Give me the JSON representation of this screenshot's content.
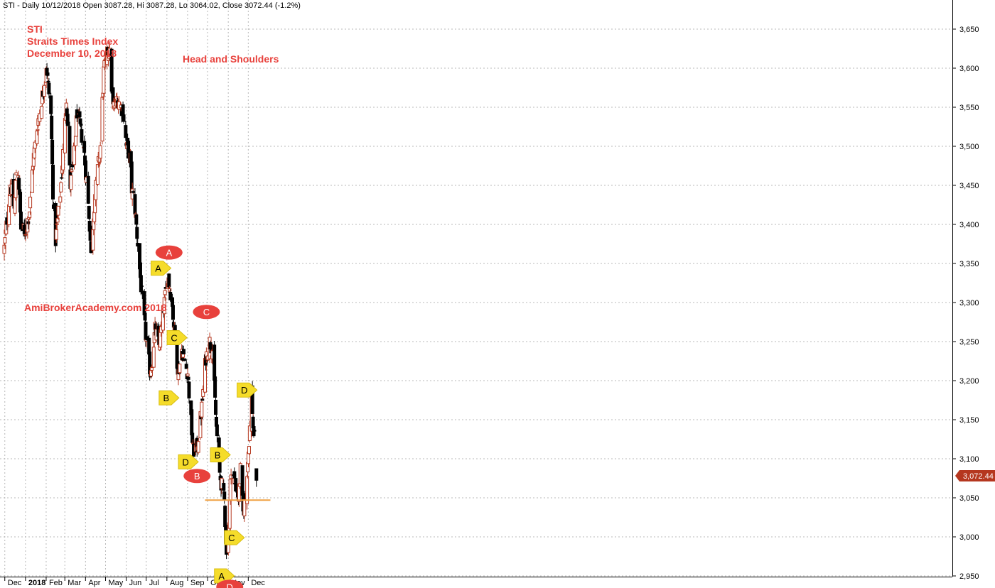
{
  "header": "STI - Daily 10/12/2018 Open 3087.28, Hi 3087.28, Lo 3064.02, Close 3072.44 (-1.2%)",
  "notes": {
    "line1": "STI",
    "line2": "Straits Times Index",
    "line3": "December 10, 2018",
    "pattern": "Head and Shoulders",
    "site": "AmiBrokerAcademy.com  2018"
  },
  "last_price_label": "3,072.44",
  "colors": {
    "up": "#b5371f",
    "down": "#000000",
    "grid": "#b8b8b8",
    "support": "#f0a040",
    "marker_red": "#e8413c",
    "marker_yellow": "#f5dc2a",
    "note": "#e8413c"
  },
  "chart_data": {
    "type": "candlestick",
    "ylim": [
      2940,
      3665
    ],
    "yticks": [
      2950,
      3000,
      3050,
      3100,
      3150,
      3200,
      3250,
      3300,
      3350,
      3400,
      3450,
      3500,
      3550,
      3600,
      3650
    ],
    "ytick_labels": [
      "2,950",
      "3,000",
      "3,050",
      "3,100",
      "3,150",
      "3,200",
      "3,250",
      "3,300",
      "3,350",
      "3,400",
      "3,450",
      "3,500",
      "3,550",
      "3,600",
      "3,650"
    ],
    "months": [
      "Dec",
      "2018",
      "Feb",
      "Mar",
      "Apr",
      "May",
      "Jun",
      "Jul",
      "Aug",
      "Sep",
      "Oct",
      "Nov",
      "Dec"
    ],
    "first_date": "2017-11-27",
    "anchors": [
      [
        "2017-11-27",
        3370
      ],
      [
        "2017-12-06",
        3452
      ],
      [
        "2017-12-12",
        3420
      ],
      [
        "2017-12-15",
        3468
      ],
      [
        "2017-12-18",
        3468
      ],
      [
        "2017-12-22",
        3395
      ],
      [
        "2017-12-28",
        3390
      ],
      [
        "2018-01-04",
        3418
      ],
      [
        "2018-01-09",
        3480
      ],
      [
        "2018-01-16",
        3530
      ],
      [
        "2018-01-24",
        3570
      ],
      [
        "2018-01-29",
        3605
      ],
      [
        "2018-02-05",
        3540
      ],
      [
        "2018-02-09",
        3410
      ],
      [
        "2018-02-12",
        3380
      ],
      [
        "2018-02-19",
        3440
      ],
      [
        "2018-02-26",
        3530
      ],
      [
        "2018-02-28",
        3565
      ],
      [
        "2018-03-06",
        3450
      ],
      [
        "2018-03-12",
        3490
      ],
      [
        "2018-03-16",
        3545
      ],
      [
        "2018-03-26",
        3500
      ],
      [
        "2018-04-02",
        3425
      ],
      [
        "2018-04-04",
        3400
      ],
      [
        "2018-04-06",
        3360
      ],
      [
        "2018-04-12",
        3440
      ],
      [
        "2018-04-20",
        3500
      ],
      [
        "2018-04-25",
        3595
      ],
      [
        "2018-05-03",
        3630
      ],
      [
        "2018-05-09",
        3550
      ],
      [
        "2018-05-16",
        3560
      ],
      [
        "2018-05-24",
        3545
      ],
      [
        "2018-05-29",
        3500
      ],
      [
        "2018-06-04",
        3485
      ],
      [
        "2018-06-06",
        3445
      ],
      [
        "2018-06-11",
        3420
      ],
      [
        "2018-06-21",
        3310
      ],
      [
        "2018-06-28",
        3250
      ],
      [
        "2018-07-04",
        3210
      ],
      [
        "2018-07-11",
        3265
      ],
      [
        "2018-07-17",
        3245
      ],
      [
        "2018-07-25",
        3300
      ],
      [
        "2018-07-30",
        3335
      ],
      [
        "2018-08-02",
        3320
      ],
      [
        "2018-08-06",
        3295
      ],
      [
        "2018-08-10",
        3250
      ],
      [
        "2018-08-15",
        3210
      ],
      [
        "2018-08-20",
        3240
      ],
      [
        "2018-08-24",
        3225
      ],
      [
        "2018-08-29",
        3210
      ],
      [
        "2018-09-06",
        3110
      ],
      [
        "2018-09-12",
        3115
      ],
      [
        "2018-09-19",
        3165
      ],
      [
        "2018-09-25",
        3230
      ],
      [
        "2018-10-01",
        3250
      ],
      [
        "2018-10-05",
        3240
      ],
      [
        "2018-10-11",
        3140
      ],
      [
        "2018-10-16",
        3080
      ],
      [
        "2018-10-23",
        3045
      ],
      [
        "2018-10-26",
        2975
      ],
      [
        "2018-10-30",
        3020
      ],
      [
        "2018-11-02",
        3090
      ],
      [
        "2018-11-09",
        3065
      ],
      [
        "2018-11-13",
        3050
      ],
      [
        "2018-11-16",
        3085
      ],
      [
        "2018-11-20",
        3030
      ],
      [
        "2018-11-23",
        3050
      ],
      [
        "2018-11-28",
        3110
      ],
      [
        "2018-12-03",
        3185
      ],
      [
        "2018-12-05",
        3140
      ],
      [
        "2018-12-07",
        3125
      ]
    ],
    "last_bar": {
      "date": "2018-12-10",
      "open": 3087.28,
      "high": 3087.28,
      "low": 3064.02,
      "close": 3072.44
    },
    "support_line": {
      "value": 3047,
      "from": "2018-09-24",
      "to": "2018-12-31"
    },
    "markers": [
      {
        "label": "A",
        "date": "2018-07-20",
        "value": 3344,
        "color": "yellow"
      },
      {
        "label": "A",
        "date": "2018-08-01",
        "value": 3364,
        "color": "red"
      },
      {
        "label": "B",
        "date": "2018-08-01",
        "value": 3178,
        "color": "yellow"
      },
      {
        "label": "C",
        "date": "2018-08-13",
        "value": 3255,
        "color": "yellow"
      },
      {
        "label": "D",
        "date": "2018-08-30",
        "value": 3096,
        "color": "yellow"
      },
      {
        "label": "B",
        "date": "2018-09-12",
        "value": 3078,
        "color": "red"
      },
      {
        "label": "C",
        "date": "2018-09-26",
        "value": 3288,
        "color": "red"
      },
      {
        "label": "B",
        "date": "2018-10-17",
        "value": 3105,
        "color": "yellow"
      },
      {
        "label": "A",
        "date": "2018-10-23",
        "value": 2950,
        "color": "yellow"
      },
      {
        "label": "D",
        "date": "2018-10-31",
        "value": 2936,
        "color": "red"
      },
      {
        "label": "C",
        "date": "2018-11-07",
        "value": 2999,
        "color": "yellow"
      },
      {
        "label": "D",
        "date": "2018-11-26",
        "value": 3188,
        "color": "yellow"
      }
    ]
  }
}
